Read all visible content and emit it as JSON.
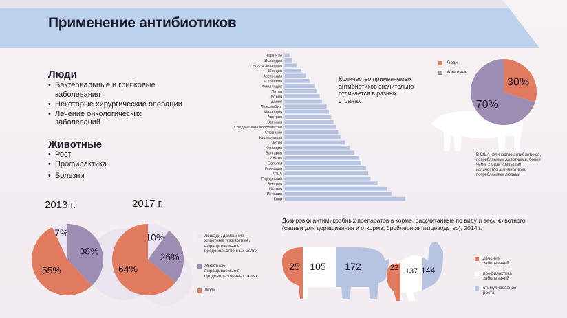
{
  "title": "Применение антибиотиков",
  "colors": {
    "coral": "#e07b5f",
    "purple": "#9e8db3",
    "blue": "#b6c4e2",
    "light": "#ebe4f2",
    "banner": "#bcd2ec"
  },
  "people": {
    "heading": "Люди",
    "items": [
      "Бактериальные и грибковые заболевания",
      "Некоторые хирургические операции",
      "Лечение онкологических",
      "заболеваний"
    ]
  },
  "animals": {
    "heading": "Животные",
    "items": [
      "Рост",
      "Профилактика",
      "Болезни"
    ]
  },
  "country_note": "Количество применяемых антибиотиков значительно отличается в разных странах",
  "us_note": "В США количество антибиотиков, потребляемых животными, более чем в 2 раза превышает количество антибиотиков, потребляемых людьми",
  "dosage_title": "Дозировки антимикробных препаратов в корме, рассчитанные по виду и весу животного (свиньи для доращивания и откорма, бройлерное птицеводство), 2014 г.",
  "pie_legend": [
    "Лошади, домашние животные и животные, выращиваемые в продовольственных целях",
    "Животные, выращиваемые в продовольственных целях",
    "Люди"
  ],
  "dosage_legend": [
    "лечение заболеваний",
    "профилактика заболеваний",
    "стимулирование роста"
  ],
  "chart_data": [
    {
      "type": "bar",
      "title": "Количество применяемых антибиотиков значительно отличается в разных странах",
      "orientation": "horizontal",
      "categories": [
        "Норвегия",
        "Исландия",
        "Новая Зеландия",
        "Швеция",
        "Австралия",
        "Словения",
        "Финляндия",
        "Литва",
        "Латвия",
        "Дания",
        "Люксембург",
        "Ирландия",
        "Австрия",
        "Эстония",
        "Соединенное Королевство",
        "Словакия",
        "Нидерланды",
        "Чехия",
        "Франция",
        "Болгария",
        "Польша",
        "Бельгия",
        "Германия",
        "США",
        "Португалия",
        "Венгрия",
        "Италия",
        "Испания",
        "Кипр"
      ],
      "values": [
        2,
        3,
        5,
        7,
        9,
        11,
        13,
        14,
        15,
        16,
        18,
        19,
        20,
        21,
        22,
        23,
        24,
        26,
        28,
        30,
        32,
        33,
        35,
        36,
        37,
        40,
        44,
        46,
        52
      ]
    },
    {
      "type": "pie",
      "title": "Люди / Животные",
      "labels": [
        "Люди",
        "Животные"
      ],
      "values": [
        30,
        70
      ]
    },
    {
      "type": "pie",
      "title": "2013 г.",
      "labels": [
        "Лошади, домашние животные и животные, выращиваемые в продовольственных целях",
        "Животные, выращиваемые в продовольственных целях",
        "Люди"
      ],
      "values": [
        7,
        38,
        55
      ]
    },
    {
      "type": "pie",
      "title": "2017 г.",
      "labels": [
        "Лошади, домашние животные и животные, выращиваемые в продовольственных целях",
        "Животные, выращиваемые в продовольственных целях",
        "Люди"
      ],
      "values": [
        10,
        26,
        64
      ]
    },
    {
      "type": "bar",
      "title": "Дозировки антимикробных препаратов в корме",
      "categories": [
        "Свиньи",
        "Птица"
      ],
      "series": [
        {
          "name": "лечение заболеваний",
          "values": [
            25,
            22
          ]
        },
        {
          "name": "профилактика заболеваний",
          "values": [
            105,
            137
          ]
        },
        {
          "name": "стимулирование роста",
          "values": [
            172,
            144
          ]
        }
      ]
    }
  ]
}
